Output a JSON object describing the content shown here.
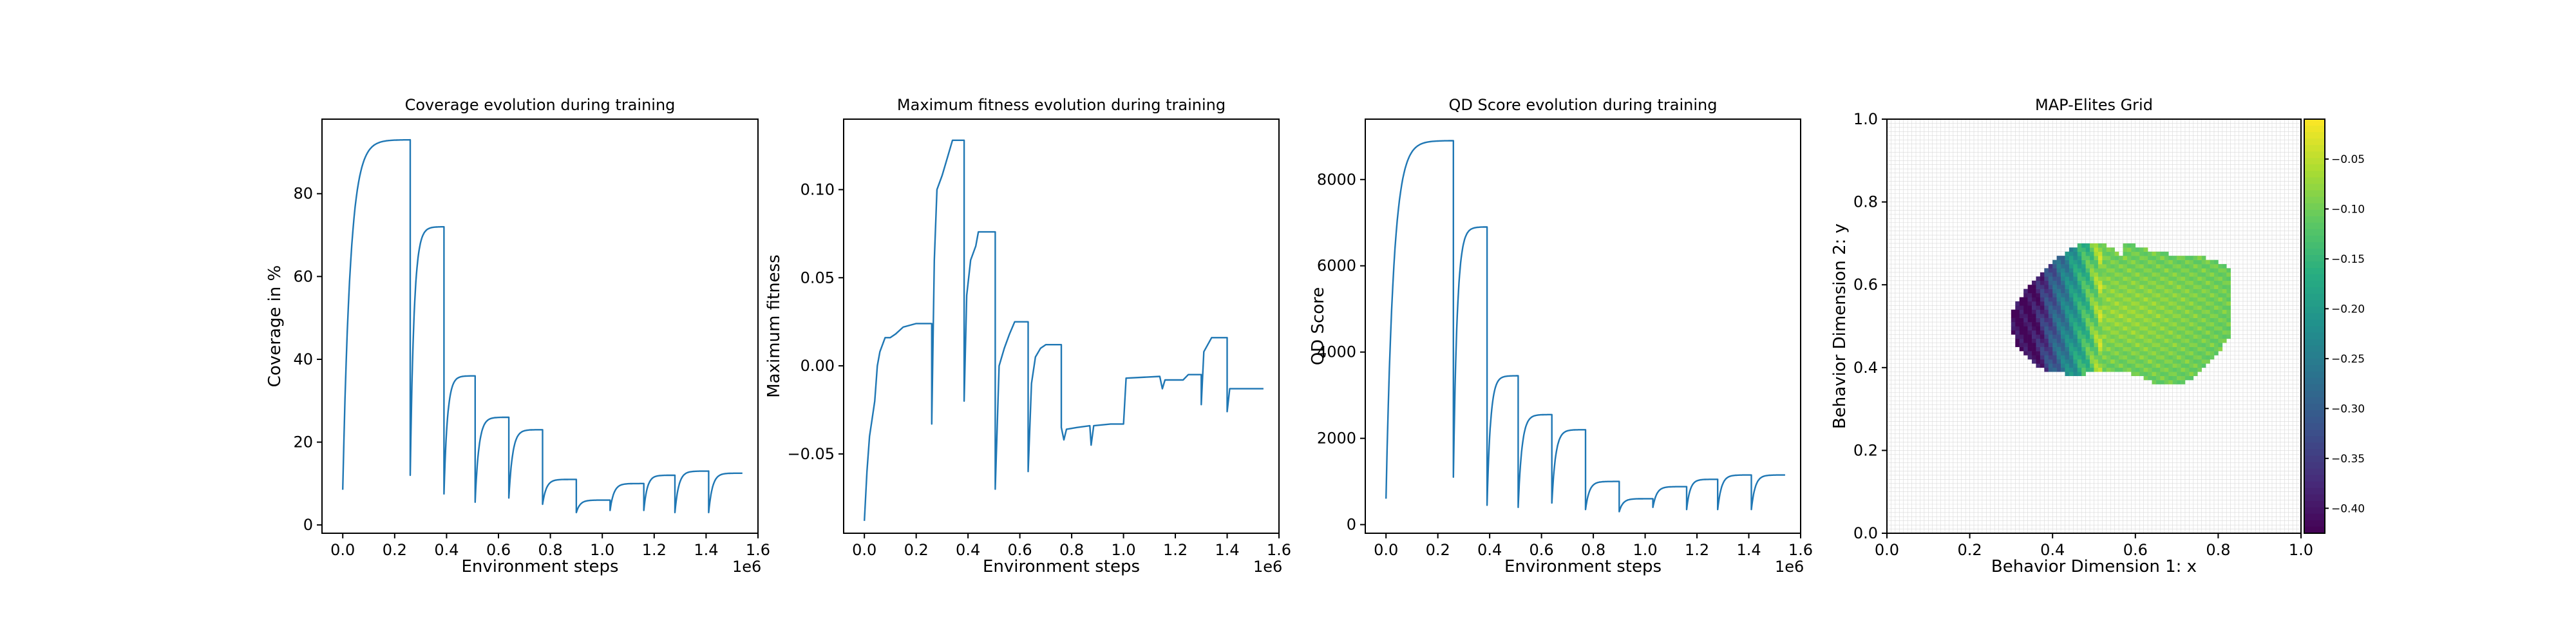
{
  "chart_data": [
    {
      "type": "line",
      "title": "Coverage evolution during training",
      "xlabel": "Environment steps",
      "ylabel": "Coverage in %",
      "x_offset_label": "1e6",
      "xlim": [
        -0.08,
        1.6
      ],
      "ylim": [
        -2,
        98
      ],
      "xticks": [
        0.0,
        0.2,
        0.4,
        0.6,
        0.8,
        1.0,
        1.2,
        1.4,
        1.6
      ],
      "xtick_labels": [
        "0.0",
        "0.2",
        "0.4",
        "0.6",
        "0.8",
        "1.0",
        "1.2",
        "1.4",
        "1.6"
      ],
      "yticks": [
        0,
        20,
        40,
        60,
        80
      ],
      "ytick_labels": [
        "0",
        "20",
        "40",
        "60",
        "80"
      ],
      "segments": [
        {
          "x0": 0.0,
          "x1": 0.26,
          "start": 8.5,
          "end": 93
        },
        {
          "x0": 0.26,
          "x1": 0.39,
          "start": 12,
          "end": 72
        },
        {
          "x0": 0.39,
          "x1": 0.51,
          "start": 7.5,
          "end": 36
        },
        {
          "x0": 0.51,
          "x1": 0.64,
          "start": 5.5,
          "end": 26
        },
        {
          "x0": 0.64,
          "x1": 0.77,
          "start": 6.5,
          "end": 23
        },
        {
          "x0": 0.77,
          "x1": 0.9,
          "start": 5.0,
          "end": 11
        },
        {
          "x0": 0.9,
          "x1": 1.03,
          "start": 3.0,
          "end": 6
        },
        {
          "x0": 1.03,
          "x1": 1.16,
          "start": 3.5,
          "end": 10
        },
        {
          "x0": 1.16,
          "x1": 1.28,
          "start": 3.5,
          "end": 12
        },
        {
          "x0": 1.28,
          "x1": 1.41,
          "start": 3.0,
          "end": 13
        },
        {
          "x0": 1.41,
          "x1": 1.54,
          "start": 3.0,
          "end": 12.5
        }
      ]
    },
    {
      "type": "line",
      "title": "Maximum fitness evolution during training",
      "xlabel": "Environment steps",
      "ylabel": "Maximum fitness",
      "x_offset_label": "1e6",
      "xlim": [
        -0.08,
        1.6
      ],
      "ylim": [
        -0.095,
        0.14
      ],
      "xticks": [
        0.0,
        0.2,
        0.4,
        0.6,
        0.8,
        1.0,
        1.2,
        1.4,
        1.6
      ],
      "xtick_labels": [
        "0.0",
        "0.2",
        "0.4",
        "0.6",
        "0.8",
        "1.0",
        "1.2",
        "1.4",
        "1.6"
      ],
      "yticks": [
        -0.05,
        0.0,
        0.05,
        0.1
      ],
      "ytick_labels": [
        "−0.05",
        "0.00",
        "0.05",
        "0.10"
      ],
      "points": [
        [
          0.0,
          -0.088
        ],
        [
          0.01,
          -0.06
        ],
        [
          0.02,
          -0.04
        ],
        [
          0.03,
          -0.03
        ],
        [
          0.04,
          -0.02
        ],
        [
          0.05,
          0.0
        ],
        [
          0.06,
          0.008
        ],
        [
          0.08,
          0.016
        ],
        [
          0.1,
          0.016
        ],
        [
          0.12,
          0.018
        ],
        [
          0.15,
          0.022
        ],
        [
          0.2,
          0.024
        ],
        [
          0.26,
          0.024
        ],
        [
          0.26,
          -0.033
        ],
        [
          0.27,
          0.06
        ],
        [
          0.28,
          0.1
        ],
        [
          0.3,
          0.108
        ],
        [
          0.32,
          0.118
        ],
        [
          0.34,
          0.128
        ],
        [
          0.385,
          0.128
        ],
        [
          0.385,
          -0.02
        ],
        [
          0.395,
          0.04
        ],
        [
          0.41,
          0.06
        ],
        [
          0.43,
          0.068
        ],
        [
          0.44,
          0.076
        ],
        [
          0.505,
          0.076
        ],
        [
          0.505,
          -0.07
        ],
        [
          0.52,
          0.0
        ],
        [
          0.54,
          0.01
        ],
        [
          0.56,
          0.018
        ],
        [
          0.58,
          0.025
        ],
        [
          0.632,
          0.025
        ],
        [
          0.632,
          -0.06
        ],
        [
          0.645,
          -0.01
        ],
        [
          0.66,
          0.005
        ],
        [
          0.68,
          0.01
        ],
        [
          0.7,
          0.012
        ],
        [
          0.76,
          0.012
        ],
        [
          0.76,
          -0.035
        ],
        [
          0.77,
          -0.042
        ],
        [
          0.78,
          -0.036
        ],
        [
          0.82,
          -0.035
        ],
        [
          0.87,
          -0.034
        ],
        [
          0.875,
          -0.045
        ],
        [
          0.885,
          -0.034
        ],
        [
          0.95,
          -0.033
        ],
        [
          1.0,
          -0.033
        ],
        [
          1.01,
          -0.007
        ],
        [
          1.14,
          -0.006
        ],
        [
          1.15,
          -0.013
        ],
        [
          1.16,
          -0.008
        ],
        [
          1.23,
          -0.008
        ],
        [
          1.25,
          -0.005
        ],
        [
          1.3,
          -0.005
        ],
        [
          1.3,
          -0.022
        ],
        [
          1.31,
          0.008
        ],
        [
          1.34,
          0.016
        ],
        [
          1.4,
          0.016
        ],
        [
          1.4,
          -0.026
        ],
        [
          1.41,
          -0.013
        ],
        [
          1.54,
          -0.013
        ]
      ]
    },
    {
      "type": "line",
      "title": "QD Score evolution during training",
      "xlabel": "Environment steps",
      "ylabel": "QD Score",
      "x_offset_label": "1e6",
      "xlim": [
        -0.08,
        1.6
      ],
      "ylim": [
        -200,
        9400
      ],
      "xticks": [
        0.0,
        0.2,
        0.4,
        0.6,
        0.8,
        1.0,
        1.2,
        1.4,
        1.6
      ],
      "xtick_labels": [
        "0.0",
        "0.2",
        "0.4",
        "0.6",
        "0.8",
        "1.0",
        "1.2",
        "1.4",
        "1.6"
      ],
      "yticks": [
        0,
        2000,
        4000,
        6000,
        8000
      ],
      "ytick_labels": [
        "0",
        "2000",
        "4000",
        "6000",
        "8000"
      ],
      "segments": [
        {
          "x0": 0.0,
          "x1": 0.26,
          "start": 600,
          "end": 8900
        },
        {
          "x0": 0.26,
          "x1": 0.39,
          "start": 1100,
          "end": 6900
        },
        {
          "x0": 0.39,
          "x1": 0.51,
          "start": 450,
          "end": 3450
        },
        {
          "x0": 0.51,
          "x1": 0.64,
          "start": 400,
          "end": 2550
        },
        {
          "x0": 0.64,
          "x1": 0.77,
          "start": 500,
          "end": 2200
        },
        {
          "x0": 0.77,
          "x1": 0.9,
          "start": 350,
          "end": 1000
        },
        {
          "x0": 0.9,
          "x1": 1.03,
          "start": 300,
          "end": 600
        },
        {
          "x0": 1.03,
          "x1": 1.16,
          "start": 400,
          "end": 880
        },
        {
          "x0": 1.16,
          "x1": 1.28,
          "start": 350,
          "end": 1050
        },
        {
          "x0": 1.28,
          "x1": 1.41,
          "start": 350,
          "end": 1150
        },
        {
          "x0": 1.41,
          "x1": 1.54,
          "start": 350,
          "end": 1150
        }
      ]
    },
    {
      "type": "heatmap",
      "title": "MAP-Elites Grid",
      "xlabel": "Behavior Dimension 1: x",
      "ylabel": "Behavior Dimension 2: y",
      "xlim": [
        0.0,
        1.0
      ],
      "ylim": [
        0.0,
        1.0
      ],
      "grid_cells": 100,
      "xticks": [
        0.0,
        0.2,
        0.4,
        0.6,
        0.8,
        1.0
      ],
      "xtick_labels": [
        "0.0",
        "0.2",
        "0.4",
        "0.6",
        "0.8",
        "1.0"
      ],
      "yticks": [
        0.0,
        0.2,
        0.4,
        0.6,
        0.8,
        1.0
      ],
      "ytick_labels": [
        "0.0",
        "0.2",
        "0.4",
        "0.6",
        "0.8",
        "1.0"
      ],
      "colorbar": {
        "colormap": "viridis",
        "range": [
          -0.425,
          -0.01
        ],
        "ticks": [
          -0.05,
          -0.1,
          -0.15,
          -0.2,
          -0.25,
          -0.3,
          -0.35,
          -0.4
        ],
        "tick_labels": [
          "−0.05",
          "−0.10",
          "−0.15",
          "−0.20",
          "−0.25",
          "−0.30",
          "−0.35",
          "−0.40"
        ]
      },
      "filled_region": {
        "x_range": [
          0.3,
          0.83
        ],
        "y_range": [
          0.34,
          0.71
        ],
        "center": [
          0.57,
          0.53
        ],
        "value_range": [
          -0.42,
          -0.03
        ]
      },
      "grid": true
    }
  ]
}
